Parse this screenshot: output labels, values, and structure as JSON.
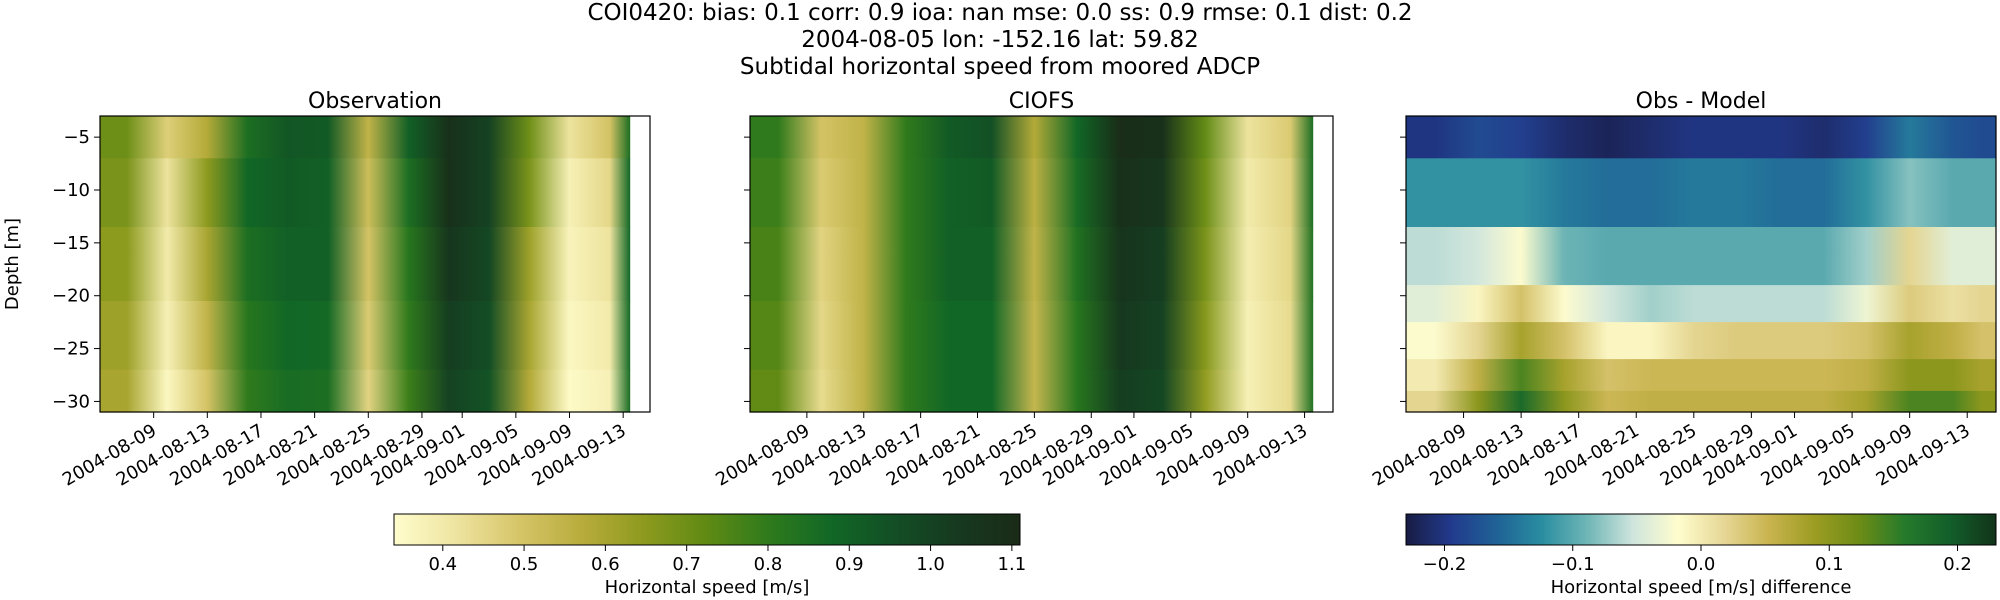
{
  "title": {
    "line1": "COI0420: bias: 0.1  corr: 0.9  ioa: nan  mse: 0.0  ss: 0.9  rmse: 0.1  dist: 0.2",
    "line2": "2004-08-05 lon: -152.16 lat: 59.82",
    "line3": "Subtidal horizontal speed from moored ADCP"
  },
  "chart_data": [
    {
      "type": "heatmap",
      "title": "Observation",
      "ylabel": "Depth [m]",
      "xlabel": "",
      "x_ticks": [
        "2004-08-09",
        "2004-08-13",
        "2004-08-17",
        "2004-08-21",
        "2004-08-25",
        "2004-08-29",
        "2004-09-01",
        "2004-09-05",
        "2004-09-09",
        "2004-09-13"
      ],
      "y_ticks": [
        -5,
        -10,
        -15,
        -20,
        -25,
        -30
      ],
      "xlim": [
        "2004-08-05",
        "2004-09-15"
      ],
      "ylim": [
        -31,
        -3
      ],
      "colormap": "speed",
      "clim": [
        0.34,
        1.11
      ],
      "x": [
        "2004-08-07",
        "2004-08-10",
        "2004-08-13",
        "2004-08-16",
        "2004-08-19",
        "2004-08-22",
        "2004-08-25",
        "2004-08-28",
        "2004-08-31",
        "2004-09-03",
        "2004-09-06",
        "2004-09-09",
        "2004-09-12",
        "2004-09-14"
      ],
      "y": [
        -4,
        -10,
        -17,
        -24,
        -30
      ],
      "values": [
        [
          0.7,
          0.47,
          0.58,
          0.85,
          0.93,
          0.92,
          0.55,
          0.9,
          1.08,
          1.0,
          0.7,
          0.42,
          0.5,
          0.85
        ],
        [
          0.68,
          0.42,
          0.65,
          0.88,
          0.92,
          0.9,
          0.52,
          0.85,
          1.08,
          1.0,
          0.68,
          0.38,
          0.45,
          0.88
        ],
        [
          0.65,
          0.4,
          0.6,
          0.85,
          0.9,
          0.9,
          0.5,
          0.82,
          1.05,
          0.98,
          0.62,
          0.37,
          0.42,
          0.88
        ],
        [
          0.62,
          0.38,
          0.55,
          0.82,
          0.88,
          0.87,
          0.48,
          0.8,
          1.02,
          0.96,
          0.6,
          0.36,
          0.4,
          0.87
        ],
        [
          0.6,
          0.36,
          0.5,
          0.8,
          0.86,
          0.85,
          0.46,
          0.78,
          1.0,
          0.94,
          0.58,
          0.35,
          0.38,
          0.86
        ]
      ]
    },
    {
      "type": "heatmap",
      "title": "CIOFS",
      "x_ticks": [
        "2004-08-09",
        "2004-08-13",
        "2004-08-17",
        "2004-08-21",
        "2004-08-25",
        "2004-08-29",
        "2004-09-01",
        "2004-09-05",
        "2004-09-09",
        "2004-09-13"
      ],
      "y_ticks": [
        -5,
        -10,
        -15,
        -20,
        -25,
        -30
      ],
      "xlim": [
        "2004-08-05",
        "2004-09-15"
      ],
      "ylim": [
        -31,
        -3
      ],
      "colormap": "speed",
      "clim": [
        0.34,
        1.11
      ],
      "x": [
        "2004-08-07",
        "2004-08-10",
        "2004-08-13",
        "2004-08-16",
        "2004-08-19",
        "2004-08-22",
        "2004-08-25",
        "2004-08-28",
        "2004-08-31",
        "2004-09-03",
        "2004-09-06",
        "2004-09-09",
        "2004-09-12",
        "2004-09-14"
      ],
      "y": [
        -4,
        -10,
        -17,
        -24,
        -30
      ],
      "values": [
        [
          0.8,
          0.5,
          0.55,
          0.8,
          0.92,
          0.95,
          0.58,
          0.88,
          1.1,
          1.08,
          0.72,
          0.42,
          0.48,
          0.85
        ],
        [
          0.78,
          0.48,
          0.55,
          0.8,
          0.9,
          0.92,
          0.56,
          0.86,
          1.08,
          1.05,
          0.7,
          0.4,
          0.46,
          0.85
        ],
        [
          0.76,
          0.46,
          0.55,
          0.8,
          0.9,
          0.9,
          0.55,
          0.84,
          1.06,
          1.02,
          0.68,
          0.39,
          0.45,
          0.84
        ],
        [
          0.74,
          0.45,
          0.55,
          0.8,
          0.88,
          0.88,
          0.54,
          0.82,
          1.04,
          1.0,
          0.66,
          0.38,
          0.44,
          0.84
        ],
        [
          0.72,
          0.44,
          0.55,
          0.8,
          0.88,
          0.88,
          0.54,
          0.82,
          1.02,
          0.98,
          0.64,
          0.38,
          0.44,
          0.84
        ]
      ]
    },
    {
      "type": "heatmap",
      "title": "Obs - Model",
      "x_ticks": [
        "2004-08-09",
        "2004-08-13",
        "2004-08-17",
        "2004-08-21",
        "2004-08-25",
        "2004-08-29",
        "2004-09-01",
        "2004-09-05",
        "2004-09-09",
        "2004-09-13"
      ],
      "y_ticks": [
        -5,
        -10,
        -15,
        -20,
        -25,
        -30
      ],
      "xlim": [
        "2004-08-05",
        "2004-09-15"
      ],
      "ylim": [
        -31,
        -3
      ],
      "colormap": "balance-delta",
      "clim": [
        -0.23,
        0.23
      ],
      "x": [
        "2004-08-07",
        "2004-08-10",
        "2004-08-13",
        "2004-08-16",
        "2004-08-19",
        "2004-08-22",
        "2004-08-25",
        "2004-08-28",
        "2004-08-31",
        "2004-09-03",
        "2004-09-06",
        "2004-09-09",
        "2004-09-12",
        "2004-09-14"
      ],
      "y": [
        -4,
        -10,
        -17,
        -21,
        -24,
        -28,
        -30
      ],
      "values": [
        [
          -0.2,
          -0.18,
          -0.19,
          -0.21,
          -0.22,
          -0.21,
          -0.2,
          -0.2,
          -0.2,
          -0.21,
          -0.19,
          -0.14,
          -0.17,
          -0.18
        ],
        [
          -0.12,
          -0.12,
          -0.12,
          -0.14,
          -0.15,
          -0.15,
          -0.14,
          -0.14,
          -0.15,
          -0.15,
          -0.12,
          -0.08,
          -0.1,
          -0.1
        ],
        [
          -0.06,
          -0.05,
          -0.02,
          -0.09,
          -0.1,
          -0.1,
          -0.1,
          -0.1,
          -0.1,
          -0.1,
          -0.07,
          0.02,
          -0.04,
          -0.04
        ],
        [
          -0.04,
          -0.01,
          0.04,
          -0.02,
          -0.05,
          -0.07,
          -0.06,
          -0.06,
          -0.06,
          -0.06,
          -0.03,
          0.03,
          0.01,
          0.02
        ],
        [
          -0.02,
          0.02,
          0.08,
          0.04,
          -0.01,
          -0.01,
          0.02,
          0.03,
          0.03,
          0.03,
          0.04,
          0.08,
          0.06,
          0.04
        ],
        [
          0.0,
          0.06,
          0.14,
          0.08,
          0.04,
          0.05,
          0.05,
          0.05,
          0.05,
          0.05,
          0.06,
          0.1,
          0.1,
          0.08
        ],
        [
          0.02,
          0.1,
          0.18,
          0.1,
          0.05,
          0.06,
          0.06,
          0.06,
          0.06,
          0.06,
          0.08,
          0.14,
          0.14,
          0.1
        ]
      ]
    }
  ],
  "colorbars": [
    {
      "label": "Horizontal speed [m/s]",
      "ticks": [
        0.4,
        0.5,
        0.6,
        0.7,
        0.8,
        0.9,
        1.0,
        1.1
      ],
      "tick_labels": [
        "0.4",
        "0.5",
        "0.6",
        "0.7",
        "0.8",
        "0.9",
        "1.0",
        "1.1"
      ],
      "range": [
        0.34,
        1.11
      ],
      "colormap": "speed"
    },
    {
      "label": "Horizontal speed [m/s] difference",
      "ticks": [
        -0.2,
        -0.1,
        0.0,
        0.1,
        0.2
      ],
      "tick_labels": [
        "−0.2",
        "−0.1",
        "0.0",
        "0.1",
        "0.2"
      ],
      "range": [
        -0.23,
        0.23
      ],
      "colormap": "balance-delta"
    }
  ],
  "colormaps": {
    "speed": [
      "#fffdcd",
      "#eee4a0",
      "#d6c568",
      "#b8ac3c",
      "#8d9a1e",
      "#5f8a14",
      "#2e7a1c",
      "#116726",
      "#134e25",
      "#16391f",
      "#1a2b17"
    ],
    "balance-delta": [
      "#181c43",
      "#223a8d",
      "#1f6296",
      "#2a8ea0",
      "#6fb6b6",
      "#cfe5dd",
      "#fffdcd",
      "#e6d796",
      "#c9b44f",
      "#9c9c22",
      "#6c8c16",
      "#247a2b",
      "#135e2a",
      "#11331a"
    ]
  }
}
